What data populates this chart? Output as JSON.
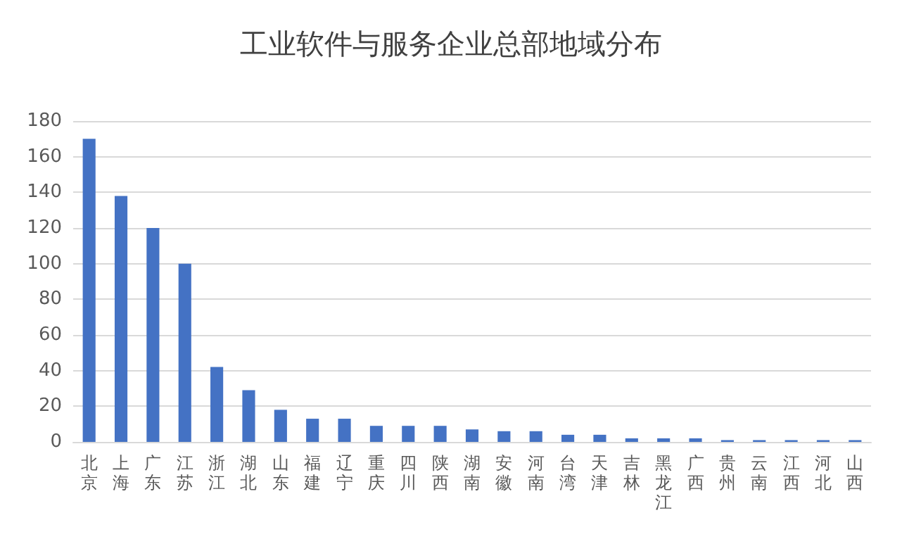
{
  "chart_data": {
    "type": "bar",
    "title": "工业软件与服务企业总部地域分布",
    "categories": [
      "北京",
      "上海",
      "广东",
      "江苏",
      "浙江",
      "湖北",
      "山东",
      "福建",
      "辽宁",
      "重庆",
      "四川",
      "陕西",
      "湖南",
      "安徽",
      "河南",
      "台湾",
      "天津",
      "吉林",
      "黑龙江",
      "广西",
      "贵州",
      "云南",
      "江西",
      "河北",
      "山西"
    ],
    "values": [
      170,
      138,
      120,
      100,
      42,
      29,
      18,
      13,
      13,
      9,
      9,
      9,
      7,
      6,
      6,
      4,
      4,
      2,
      2,
      2,
      1,
      1,
      1,
      1,
      1
    ],
    "color": "#4472c4",
    "ylim": [
      0,
      180
    ],
    "yticks": [
      0,
      20,
      40,
      60,
      80,
      100,
      120,
      140,
      160,
      180
    ],
    "grid": "y"
  }
}
